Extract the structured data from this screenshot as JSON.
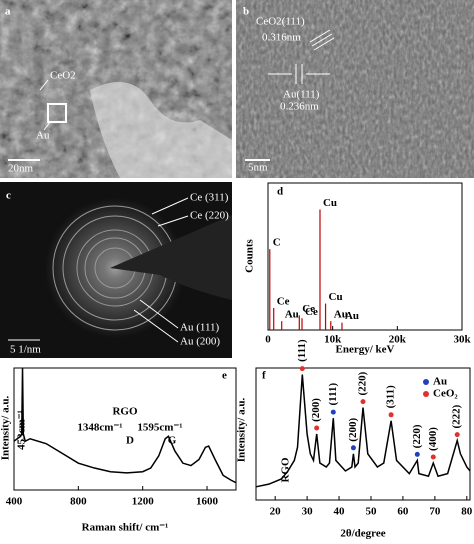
{
  "images": [
    {
      "label": "a",
      "texts": [
        "CeO2",
        "Au",
        "20nm"
      ]
    },
    {
      "label": "b",
      "texts": [
        "CeO2(111)",
        "0.316nm",
        "Au(111)",
        "0.236nm",
        "5nm"
      ]
    },
    {
      "label": "c",
      "texts": [
        "Ce (311)",
        "Ce (220)",
        "Au (111)",
        "Au (200)",
        "5 1/nm"
      ]
    }
  ],
  "chart_data": [
    {
      "type": "stick",
      "label": "d",
      "xlabel": "Energy/ keV",
      "ylabel": "Counts",
      "xlim": [
        0,
        30000
      ],
      "ylim": [
        0,
        100
      ],
      "xticks": [
        0,
        {
          "value": 10000,
          "label": "10k"
        },
        {
          "value": 20000,
          "label": "20k"
        },
        {
          "value": 30000,
          "label": "30k"
        }
      ],
      "color": "#c00000",
      "peaks": [
        {
          "label": "C",
          "x": 277,
          "value": 55
        },
        {
          "label": "Ce",
          "x": 883,
          "value": 15
        },
        {
          "label": "Au",
          "x": 2120,
          "value": 6
        },
        {
          "label": "Ce",
          "x": 4840,
          "value": 10
        },
        {
          "label": "Ce",
          "x": 5260,
          "value": 8
        },
        {
          "label": "Cu",
          "x": 8040,
          "value": 82
        },
        {
          "label": "Cu",
          "x": 8900,
          "value": 18
        },
        {
          "label": "Au",
          "x": 9710,
          "value": 6
        },
        {
          "label": "Au",
          "x": 11440,
          "value": 5
        }
      ]
    },
    {
      "type": "line",
      "label": "e",
      "xlabel": "Raman shift/ cm⁻¹",
      "ylabel": "Intensity/ a.u.",
      "xlim": [
        400,
        1780
      ],
      "ylim": [
        0,
        100
      ],
      "xticks": [
        400,
        800,
        1200,
        1600
      ],
      "annotations": [
        "453cm⁻¹",
        "RGO",
        "1348cm⁻¹",
        "1595cm⁻¹",
        "D",
        "G"
      ],
      "x": [
        400,
        440,
        448,
        453,
        458,
        470,
        500,
        600,
        700,
        800,
        900,
        1000,
        1100,
        1200,
        1250,
        1300,
        1340,
        1360,
        1400,
        1450,
        1500,
        1550,
        1590,
        1610,
        1650,
        1700,
        1750,
        1780
      ],
      "series": [
        {
          "color": "#000000",
          "values": [
            40,
            44,
            46,
            100,
            46,
            40,
            42,
            38,
            30,
            22,
            18,
            15,
            14,
            15,
            18,
            28,
            42,
            44,
            32,
            22,
            20,
            25,
            35,
            36,
            25,
            12,
            8,
            6
          ]
        }
      ]
    },
    {
      "type": "line",
      "label": "f",
      "xlabel": "2θ/degree",
      "ylabel": "Intensity/ a.u.",
      "xlim": [
        14,
        81
      ],
      "ylim": [
        0,
        100
      ],
      "xticks": [
        20,
        30,
        40,
        50,
        60,
        70,
        80
      ],
      "annotations": [
        "RGO"
      ],
      "legend": [
        {
          "name": "Au",
          "color": "#2040c0"
        },
        {
          "name": "CeO₂",
          "color": "#e03030"
        }
      ],
      "peaks": [
        {
          "label": "(111)",
          "x": 28.5,
          "color": "#e03030"
        },
        {
          "label": "(200)",
          "x": 33,
          "color": "#e03030"
        },
        {
          "label": "(111)",
          "x": 38.2,
          "color": "#2040c0"
        },
        {
          "label": "(200)",
          "x": 44.5,
          "color": "#2040c0"
        },
        {
          "label": "(220)",
          "x": 47.5,
          "color": "#e03030"
        },
        {
          "label": "(311)",
          "x": 56.3,
          "color": "#e03030"
        },
        {
          "label": "(220)",
          "x": 64.5,
          "color": "#2040c0"
        },
        {
          "label": "(400)",
          "x": 69.5,
          "color": "#e03030"
        },
        {
          "label": "(222)",
          "x": 77,
          "color": "#e03030"
        }
      ],
      "x": [
        14,
        18,
        20,
        22,
        24,
        26,
        27,
        28.5,
        30,
        31,
        32,
        33,
        34,
        36,
        37,
        38.2,
        39,
        42,
        44,
        44.5,
        45,
        46,
        47.5,
        49,
        52,
        54,
        56.3,
        58,
        62,
        64.5,
        65,
        68,
        69.5,
        71,
        74,
        77,
        78,
        80,
        81
      ],
      "series": [
        {
          "color": "#000000",
          "values": [
            10,
            12,
            14,
            16,
            22,
            30,
            40,
            95,
            50,
            35,
            30,
            50,
            28,
            25,
            28,
            62,
            30,
            22,
            25,
            35,
            25,
            28,
            70,
            35,
            25,
            28,
            60,
            30,
            20,
            30,
            20,
            18,
            28,
            18,
            20,
            45,
            35,
            25,
            22
          ]
        }
      ]
    }
  ]
}
